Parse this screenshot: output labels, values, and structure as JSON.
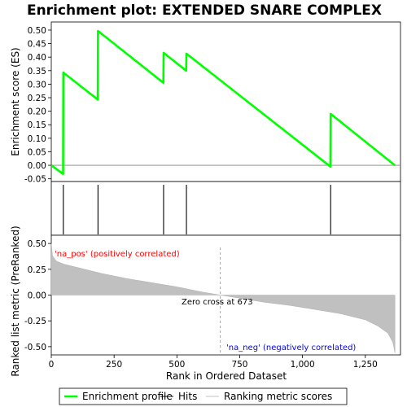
{
  "chart_data": {
    "type": "line",
    "title": "Enrichment plot: EXTENDED SNARE COMPLEX",
    "es_panel": {
      "ylabel": "Enrichment score (ES)",
      "ylim": [
        -0.06,
        0.53
      ],
      "yticks": [
        -0.05,
        0.0,
        0.05,
        0.1,
        0.15,
        0.2,
        0.25,
        0.3,
        0.35,
        0.4,
        0.45,
        0.5
      ],
      "ytick_labels": [
        "-0.05",
        "0.00",
        "0.05",
        "0.10",
        "0.15",
        "0.20",
        "0.25",
        "0.30",
        "0.35",
        "0.40",
        "0.45",
        "0.50"
      ],
      "series": [
        {
          "name": "Enrichment profile",
          "color": "#00ff00",
          "x": [
            0,
            47,
            48,
            185,
            186,
            446,
            447,
            537,
            538,
            1111,
            1112,
            1368
          ],
          "y": [
            0.0,
            -0.032,
            0.343,
            0.243,
            0.497,
            0.305,
            0.416,
            0.35,
            0.413,
            -0.005,
            0.19,
            0.0
          ]
        }
      ]
    },
    "hits": [
      48,
      186,
      447,
      538,
      1112
    ],
    "rank_panel": {
      "ylabel": "Ranked list metric (PreRanked)",
      "ylim": [
        -0.58,
        0.58
      ],
      "yticks": [
        -0.5,
        -0.25,
        0.0,
        0.25,
        0.5
      ],
      "ytick_labels": [
        "-0.50",
        "-0.25",
        "0.00",
        "0.25",
        "0.50"
      ],
      "metric_curve": {
        "x": [
          0,
          5,
          20,
          50,
          100,
          150,
          200,
          300,
          400,
          500,
          600,
          673,
          750,
          850,
          950,
          1050,
          1150,
          1250,
          1300,
          1340,
          1360,
          1368
        ],
        "y": [
          0.5,
          0.38,
          0.33,
          0.3,
          0.27,
          0.24,
          0.21,
          0.16,
          0.12,
          0.08,
          0.03,
          0.0,
          -0.03,
          -0.07,
          -0.1,
          -0.14,
          -0.18,
          -0.24,
          -0.3,
          -0.37,
          -0.46,
          -0.56
        ]
      },
      "zero_cross": 673,
      "zero_cross_label": "Zero cross at 673",
      "pos_label": "'na_pos' (positively correlated)",
      "neg_label": "'na_neg' (negatively correlated)",
      "pos_color": "#ff0000",
      "neg_color": "#0000ff"
    },
    "xlabel": "Rank in Ordered Dataset",
    "xlim": [
      0,
      1390
    ],
    "xticks": [
      0,
      250,
      500,
      750,
      1000,
      1250
    ],
    "xtick_labels": [
      "0",
      "250",
      "500",
      "750",
      "1,000",
      "1,250"
    ],
    "heatmap_blocks": [
      {
        "from": 0,
        "to": 20,
        "color": "#e00000"
      },
      {
        "from": 20,
        "to": 120,
        "color": "#f02a2a"
      },
      {
        "from": 120,
        "to": 295,
        "color": "#ff5050"
      },
      {
        "from": 295,
        "to": 408,
        "color": "#ff7070"
      },
      {
        "from": 408,
        "to": 530,
        "color": "#ff8c8c"
      },
      {
        "from": 530,
        "to": 670,
        "color": "#ffc0e0"
      },
      {
        "from": 670,
        "to": 810,
        "color": "#dcd6f8"
      },
      {
        "from": 810,
        "to": 958,
        "color": "#c4b8f4"
      },
      {
        "from": 958,
        "to": 1062,
        "color": "#8a80f0"
      },
      {
        "from": 1062,
        "to": 1268,
        "color": "#6a58f0"
      },
      {
        "from": 1268,
        "to": 1368,
        "color": "#3410d8"
      }
    ],
    "legend": [
      {
        "label": "Enrichment profile",
        "color": "#00ff00",
        "kind": "thick"
      },
      {
        "label": "Hits",
        "color": "#000000",
        "kind": "line"
      },
      {
        "label": "Ranking metric scores",
        "color": "#c0c0c0",
        "kind": "line"
      }
    ]
  }
}
